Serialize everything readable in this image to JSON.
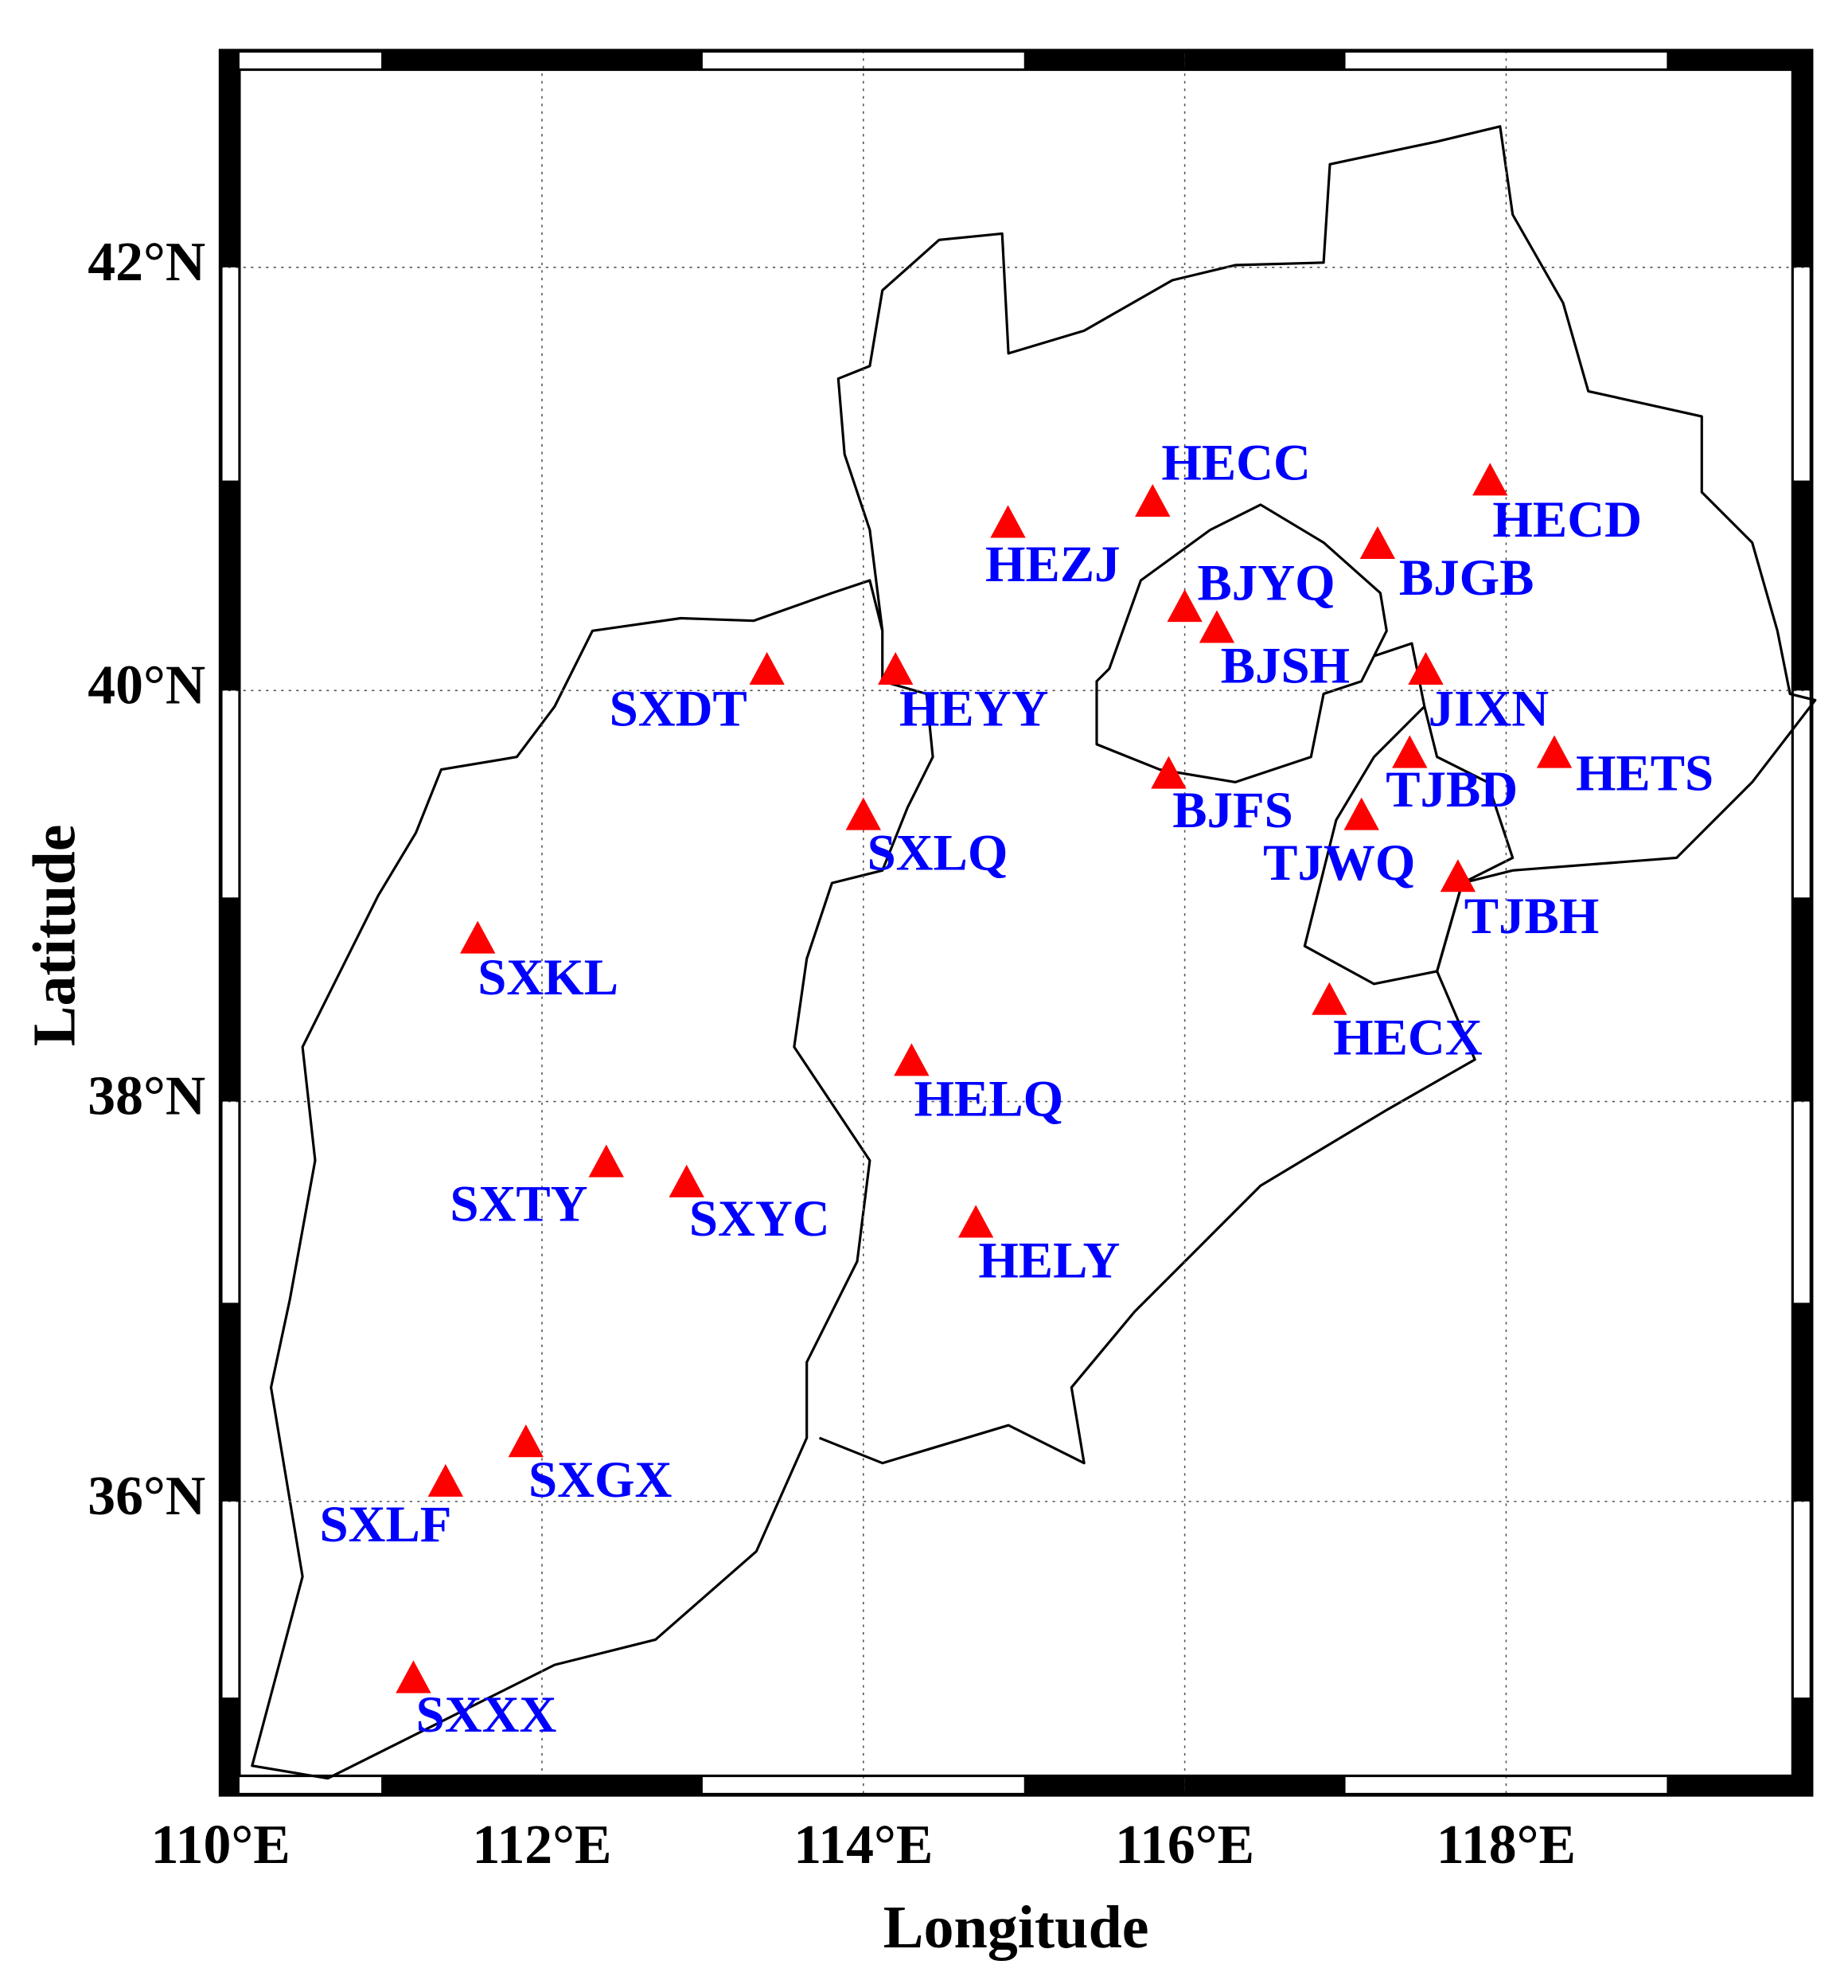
{
  "chart_data": {
    "type": "map",
    "xlabel": "Longitude",
    "ylabel": "Latitude",
    "xlim": [
      110,
      119.9
    ],
    "ylim": [
      34.5,
      43
    ],
    "xticks": [
      {
        "value": 110,
        "label": "110°E"
      },
      {
        "value": 112,
        "label": "112°E"
      },
      {
        "value": 114,
        "label": "114°E"
      },
      {
        "value": 116,
        "label": "116°E"
      },
      {
        "value": 118,
        "label": "118°E"
      }
    ],
    "yticks": [
      {
        "value": 36,
        "label": "36°N"
      },
      {
        "value": 38,
        "label": "38°N"
      },
      {
        "value": 40,
        "label": "40°N"
      },
      {
        "value": 42,
        "label": "42°N"
      }
    ],
    "projection": "mercator",
    "grid": true,
    "marker_color": "#ff0000",
    "label_color": "#0000ff",
    "points": [
      {
        "name": "HECC",
        "lon": 115.8,
        "lat": 40.9
      },
      {
        "name": "HECD",
        "lon": 117.9,
        "lat": 41.0
      },
      {
        "name": "HEZJ",
        "lon": 114.9,
        "lat": 40.8
      },
      {
        "name": "BJYQ",
        "lon": 116.0,
        "lat": 40.4
      },
      {
        "name": "BJGB",
        "lon": 117.2,
        "lat": 40.7
      },
      {
        "name": "BJSH",
        "lon": 116.2,
        "lat": 40.3
      },
      {
        "name": "SXDT",
        "lon": 113.4,
        "lat": 40.1
      },
      {
        "name": "HEYY",
        "lon": 114.2,
        "lat": 40.1
      },
      {
        "name": "JIXN",
        "lon": 117.5,
        "lat": 40.1
      },
      {
        "name": "TJBD",
        "lon": 117.4,
        "lat": 39.7
      },
      {
        "name": "HETS",
        "lon": 118.3,
        "lat": 39.7
      },
      {
        "name": "BJFS",
        "lon": 115.9,
        "lat": 39.6
      },
      {
        "name": "TJWQ",
        "lon": 117.1,
        "lat": 39.4
      },
      {
        "name": "SXLQ",
        "lon": 114.0,
        "lat": 39.4
      },
      {
        "name": "TJBH",
        "lon": 117.7,
        "lat": 39.1
      },
      {
        "name": "SXKL",
        "lon": 111.6,
        "lat": 38.8
      },
      {
        "name": "HECX",
        "lon": 116.9,
        "lat": 38.5
      },
      {
        "name": "HELQ",
        "lon": 114.3,
        "lat": 38.2
      },
      {
        "name": "SXTY",
        "lon": 112.4,
        "lat": 37.7
      },
      {
        "name": "SXYC",
        "lon": 112.9,
        "lat": 37.6
      },
      {
        "name": "HELY",
        "lon": 114.7,
        "lat": 37.4
      },
      {
        "name": "SXGX",
        "lon": 111.9,
        "lat": 36.3
      },
      {
        "name": "SXLF",
        "lon": 111.4,
        "lat": 36.1
      },
      {
        "name": "SXXX",
        "lon": 111.2,
        "lat": 35.1
      }
    ]
  }
}
